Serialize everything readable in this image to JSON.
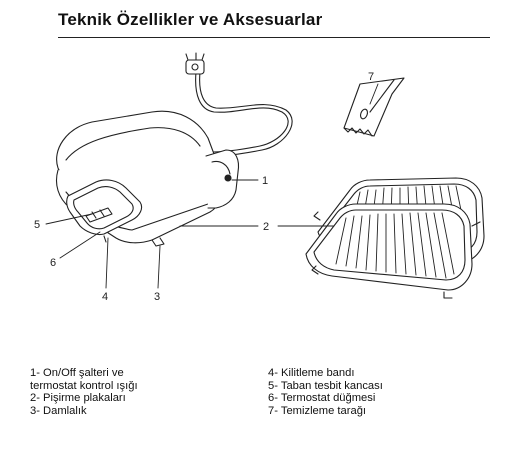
{
  "title": "Teknik Özellikler ve Aksesuarlar",
  "callouts": [
    "1",
    "2",
    "3",
    "4",
    "5",
    "6",
    "7"
  ],
  "legend_left": [
    "1- On/Off şalteri ve",
    "termostat kontrol ışığı",
    "2- Pişirme plakaları",
    "3- Damlalık"
  ],
  "legend_right": [
    "4- Kilitleme bandı",
    "5- Taban tesbit kancası",
    "6- Termostat düğmesi",
    "7- Temizleme tarağı"
  ]
}
